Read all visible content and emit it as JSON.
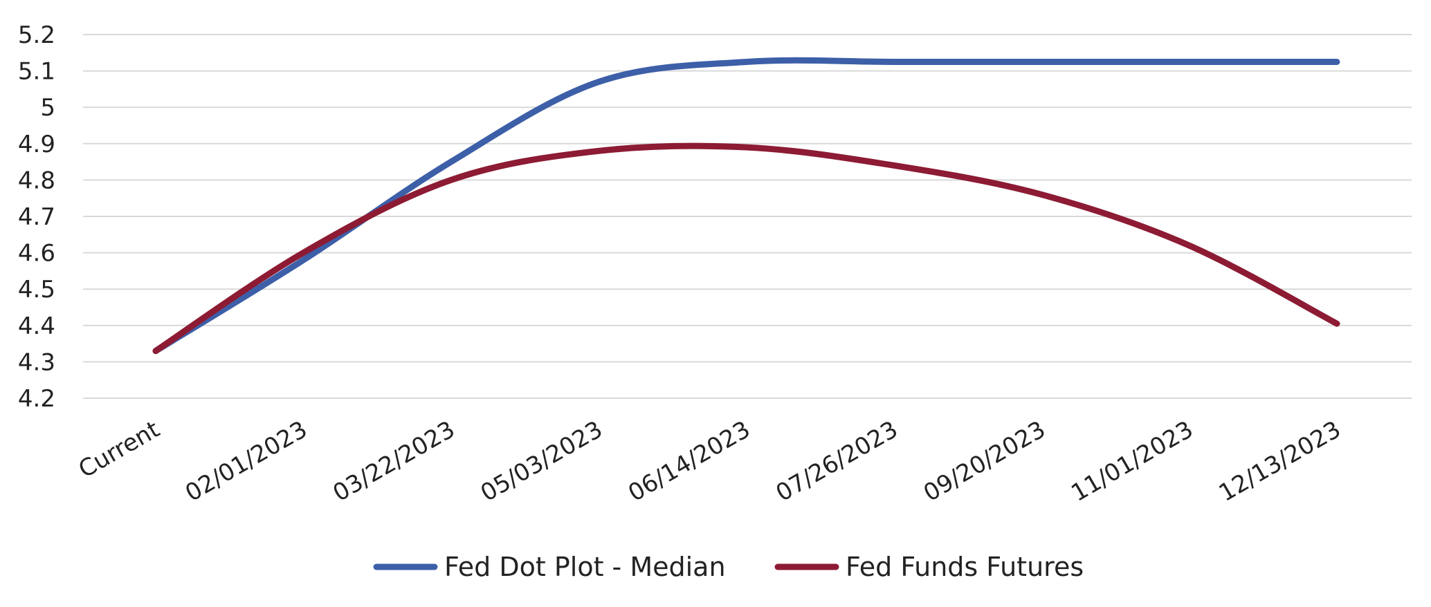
{
  "chart_data": {
    "type": "line",
    "title": "",
    "xlabel": "",
    "ylabel": "",
    "categories": [
      "Current",
      "02/01/2023",
      "03/22/2023",
      "05/03/2023",
      "06/14/2023",
      "07/26/2023",
      "09/20/2023",
      "11/01/2023",
      "12/13/2023"
    ],
    "y_ticks": [
      "5.2",
      "5.1",
      "5",
      "4.9",
      "4.8",
      "4.7",
      "4.6",
      "4.5",
      "4.4",
      "4.3",
      "4.2"
    ],
    "ylim": [
      4.2,
      5.2
    ],
    "grid": true,
    "legend_position": "bottom",
    "series": [
      {
        "name": "Fed Dot Plot - Median",
        "color": "#3d5fa8",
        "values": [
          4.33,
          4.58,
          4.85,
          5.07,
          5.125,
          5.125,
          5.125,
          5.125,
          5.125
        ]
      },
      {
        "name": "Fed Funds Futures",
        "color": "#8c1b33",
        "values": [
          4.33,
          4.6,
          4.8,
          4.88,
          4.89,
          4.84,
          4.76,
          4.62,
          4.405
        ]
      }
    ]
  }
}
